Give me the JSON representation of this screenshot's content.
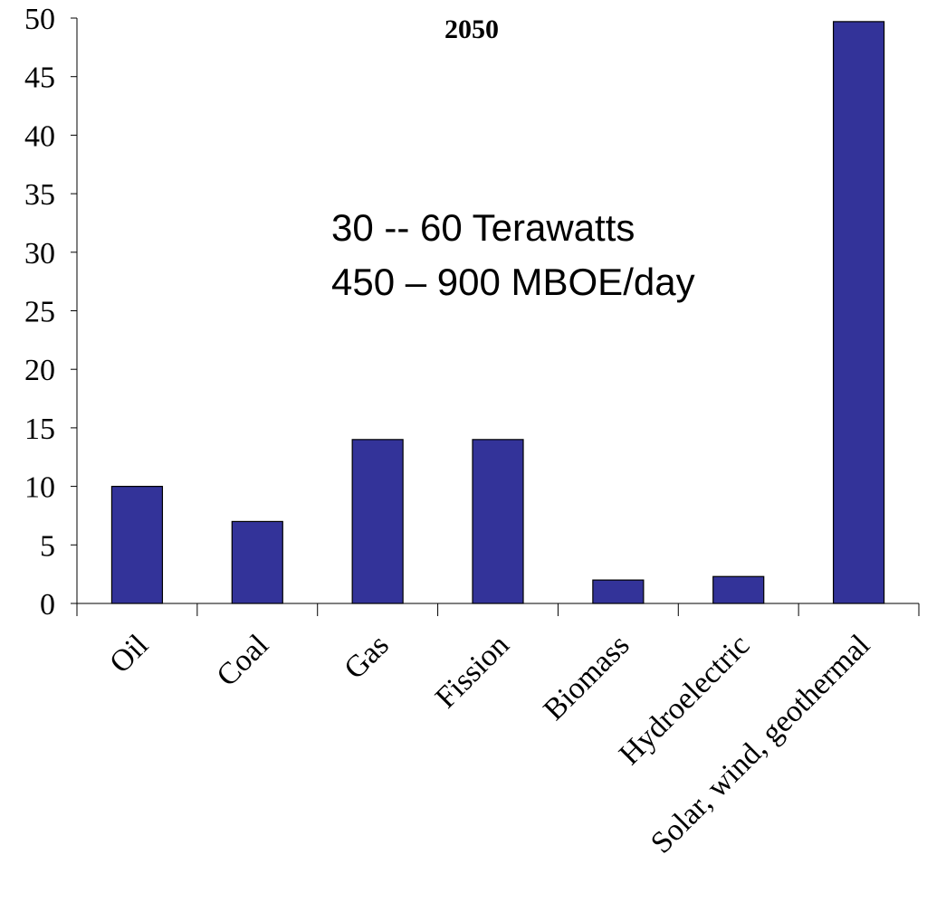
{
  "chart_data": {
    "type": "bar",
    "title": "2050",
    "categories": [
      "Oil",
      "Coal",
      "Gas",
      "Fission",
      "Biomass",
      "Hydroelectric",
      "Solar, wind, geothermal"
    ],
    "values": [
      10,
      7,
      14,
      14,
      2,
      2.3,
      49.7
    ],
    "ylim": [
      0,
      50
    ],
    "yticks": [
      0,
      5,
      10,
      15,
      20,
      25,
      30,
      35,
      40,
      45,
      50
    ],
    "xlabel": "",
    "ylabel": "",
    "grid": false,
    "legend": "none",
    "annotations": [
      "30 -- 60 Terawatts",
      "450 – 900  MBOE/day"
    ],
    "colors": {
      "bar_fill": "#333399",
      "bar_stroke": "#000000",
      "axis": "#000000"
    }
  }
}
